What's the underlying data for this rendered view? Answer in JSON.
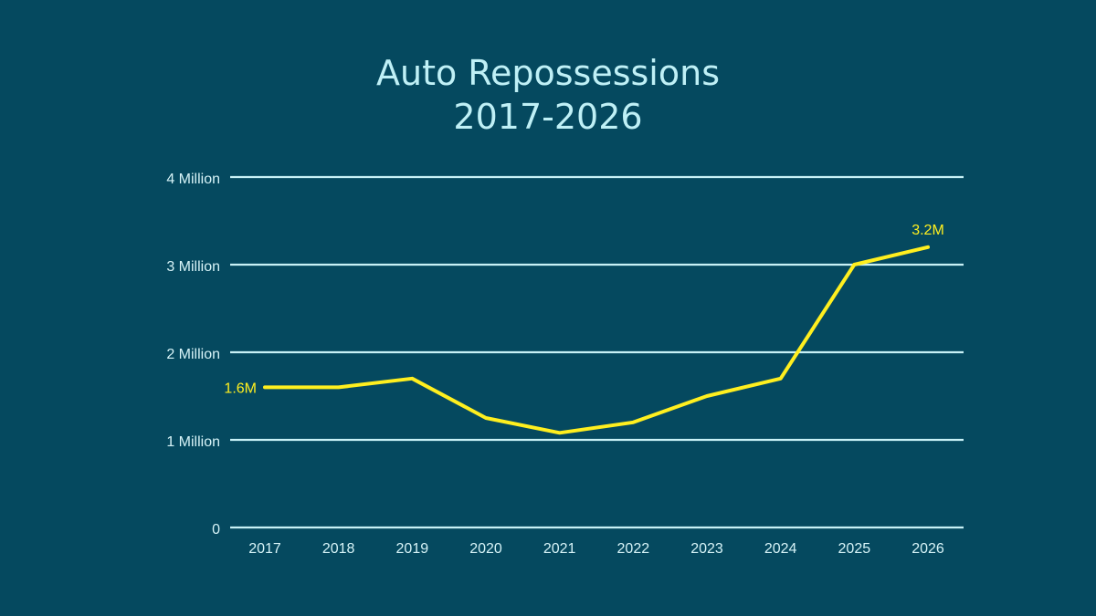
{
  "chart_data": {
    "type": "line",
    "title_lines": [
      "Auto Repossessions",
      "2017-2026"
    ],
    "xlabel": "",
    "ylabel": "",
    "categories": [
      "2017",
      "2018",
      "2019",
      "2020",
      "2021",
      "2022",
      "2023",
      "2024",
      "2025",
      "2026"
    ],
    "series": [
      {
        "values": [
          1.6,
          1.6,
          1.7,
          1.25,
          1.08,
          1.2,
          1.5,
          1.7,
          3.0,
          3.2
        ],
        "color": "#ffef1f"
      }
    ],
    "ylim": [
      0,
      4
    ],
    "y_ticks": [
      {
        "value": 0,
        "label": "0"
      },
      {
        "value": 1,
        "label": "1 Million"
      },
      {
        "value": 2,
        "label": "2 Million"
      },
      {
        "value": 3,
        "label": "3 Million"
      },
      {
        "value": 4,
        "label": "4 Million"
      }
    ],
    "annotations": [
      {
        "index": 0,
        "text": "1.6M"
      },
      {
        "index": 9,
        "text": "3.2M"
      }
    ],
    "grid": true,
    "legend": "none",
    "colors": {
      "background": "#05495f",
      "gridline": "#c8f1f6",
      "line": "#ffef1f",
      "title": "#bff0f6",
      "tick_text": "#d6f3f7"
    }
  }
}
